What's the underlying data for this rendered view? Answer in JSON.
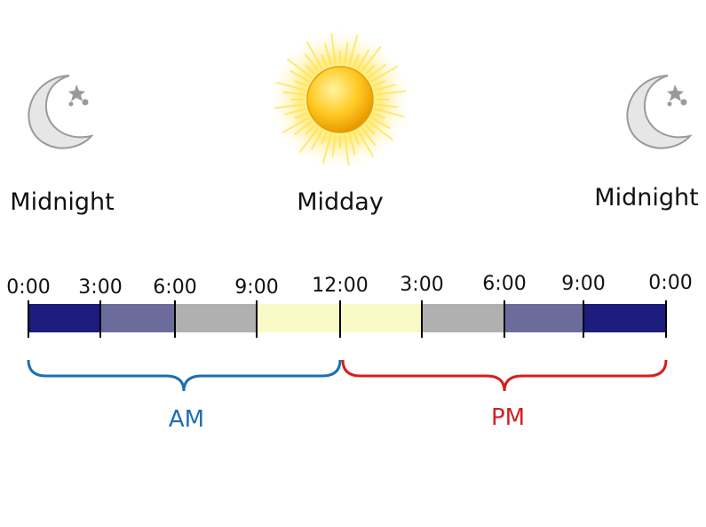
{
  "header": {
    "left": "Midnight",
    "center": "Midday",
    "right": "Midnight"
  },
  "timeline": {
    "labels": [
      "0:00",
      "3:00",
      "6:00",
      "9:00",
      "12:00",
      "3:00",
      "6:00",
      "9:00",
      "0:00"
    ]
  },
  "periods": {
    "am": "AM",
    "pm": "PM"
  }
}
